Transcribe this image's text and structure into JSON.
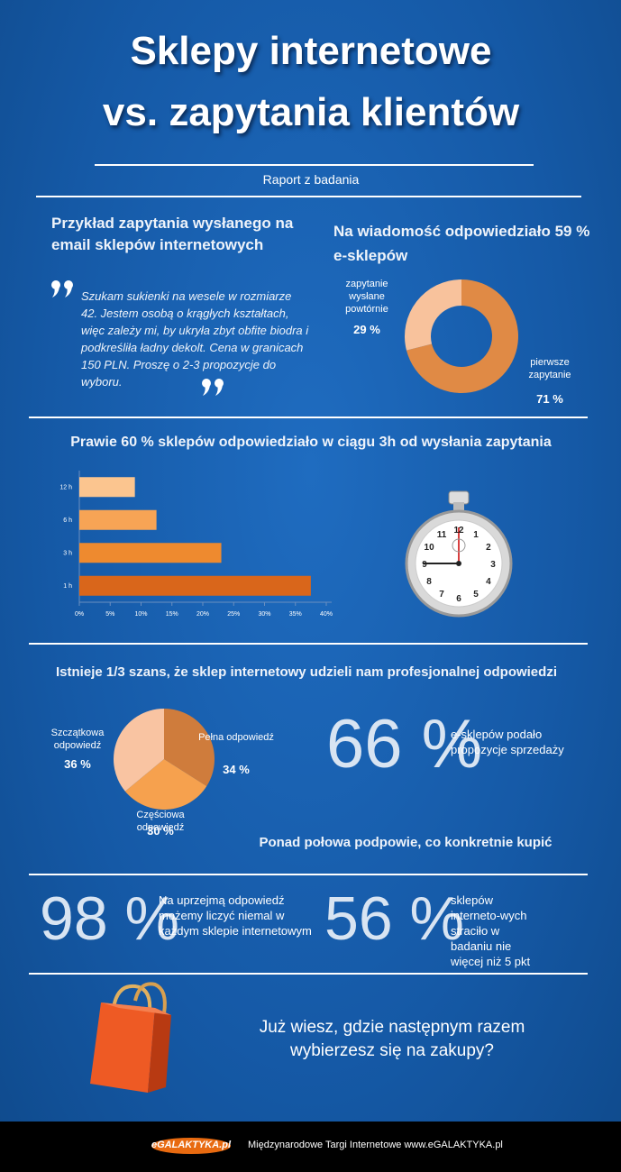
{
  "header": {
    "title_line1": "Sklepy internetowe",
    "title_line2": "vs. zapytania klientów",
    "subtitle": "Raport z badania"
  },
  "example": {
    "heading": "Przykład zapytania wysłanego na email sklepów internetowych",
    "quote": "Szukam sukienki na wesele w rozmiarze 42. Jestem osobą o krągłych kształtach, więc zależy mi, by ukryła zbyt obfite biodra i podkreśliła ładny dekolt. Cena w granicach 150 PLN. Proszę o 2-3 propozycje do wyboru."
  },
  "chart_data": [
    {
      "type": "donut",
      "title": "Na wiadomość odpowiedziało 59 % e-sklepów",
      "categories": [
        "pierwsze zapytanie",
        "zapytanie wysłane powtórnie"
      ],
      "values": [
        71,
        29
      ],
      "value_labels": [
        "71 %",
        "29 %"
      ],
      "colors": [
        "#e08a45",
        "#f8c29c"
      ]
    },
    {
      "type": "hbar",
      "title": "Prawie 60 % sklepów odpowiedziało w ciągu 3h od wysłania zapytania",
      "categories": [
        "12 h",
        "6 h",
        "3 h",
        "1 h"
      ],
      "values": [
        9,
        12.5,
        23,
        37.5
      ],
      "colors": [
        "#fbc58f",
        "#f7a455",
        "#ee8a2f",
        "#d9661b"
      ],
      "xlim": [
        0,
        40
      ],
      "xticks": [
        {
          "value": 0,
          "label": "0%"
        },
        {
          "value": 5,
          "label": "5%"
        },
        {
          "value": 10,
          "label": "10%"
        },
        {
          "value": 15,
          "label": "15%"
        },
        {
          "value": 20,
          "label": "20%"
        },
        {
          "value": 25,
          "label": "25%"
        },
        {
          "value": 30,
          "label": "30%"
        },
        {
          "value": 35,
          "label": "35%"
        },
        {
          "value": 40,
          "label": "40%"
        }
      ]
    },
    {
      "type": "pie",
      "title": "Istnieje 1/3 szans, że sklep internetowy udzieli nam profesjonalnej odpowiedzi",
      "categories": [
        "Pełna odpowiedź",
        "Częściowa odpowiedź",
        "Szczątkowa odpowiedź"
      ],
      "values": [
        34,
        30,
        36
      ],
      "value_labels": [
        "34 %",
        "30 %",
        "36 %"
      ],
      "colors": [
        "#cf7c3c",
        "#f6a14e",
        "#f9c4a2"
      ]
    }
  ],
  "stopwatch": {
    "dial": [
      "12",
      "1",
      "2",
      "3",
      "4",
      "5",
      "6",
      "7",
      "8",
      "9",
      "10",
      "11"
    ]
  },
  "stats": [
    {
      "big": "66 %",
      "text": "e-sklepów podało propozycje sprzedaży"
    },
    {
      "big": "98 %",
      "text": "Na uprzejmą odpowiedź możemy liczyć niemal w każdym sklepie internetowym"
    },
    {
      "big": "56 %",
      "text": "sklepów interneto-wych straciło w badaniu nie więcej niż 5 pkt"
    }
  ],
  "note": "Ponad połowa podpowie, co konkretnie kupić",
  "closing": "Już wiesz, gdzie następnym razem wybierzesz się na zakupy?",
  "footer": {
    "logo": "eGALAKTYKA.pl",
    "text": "Międzynarodowe Targi Internetowe www.eGALAKTYKA.pl"
  }
}
